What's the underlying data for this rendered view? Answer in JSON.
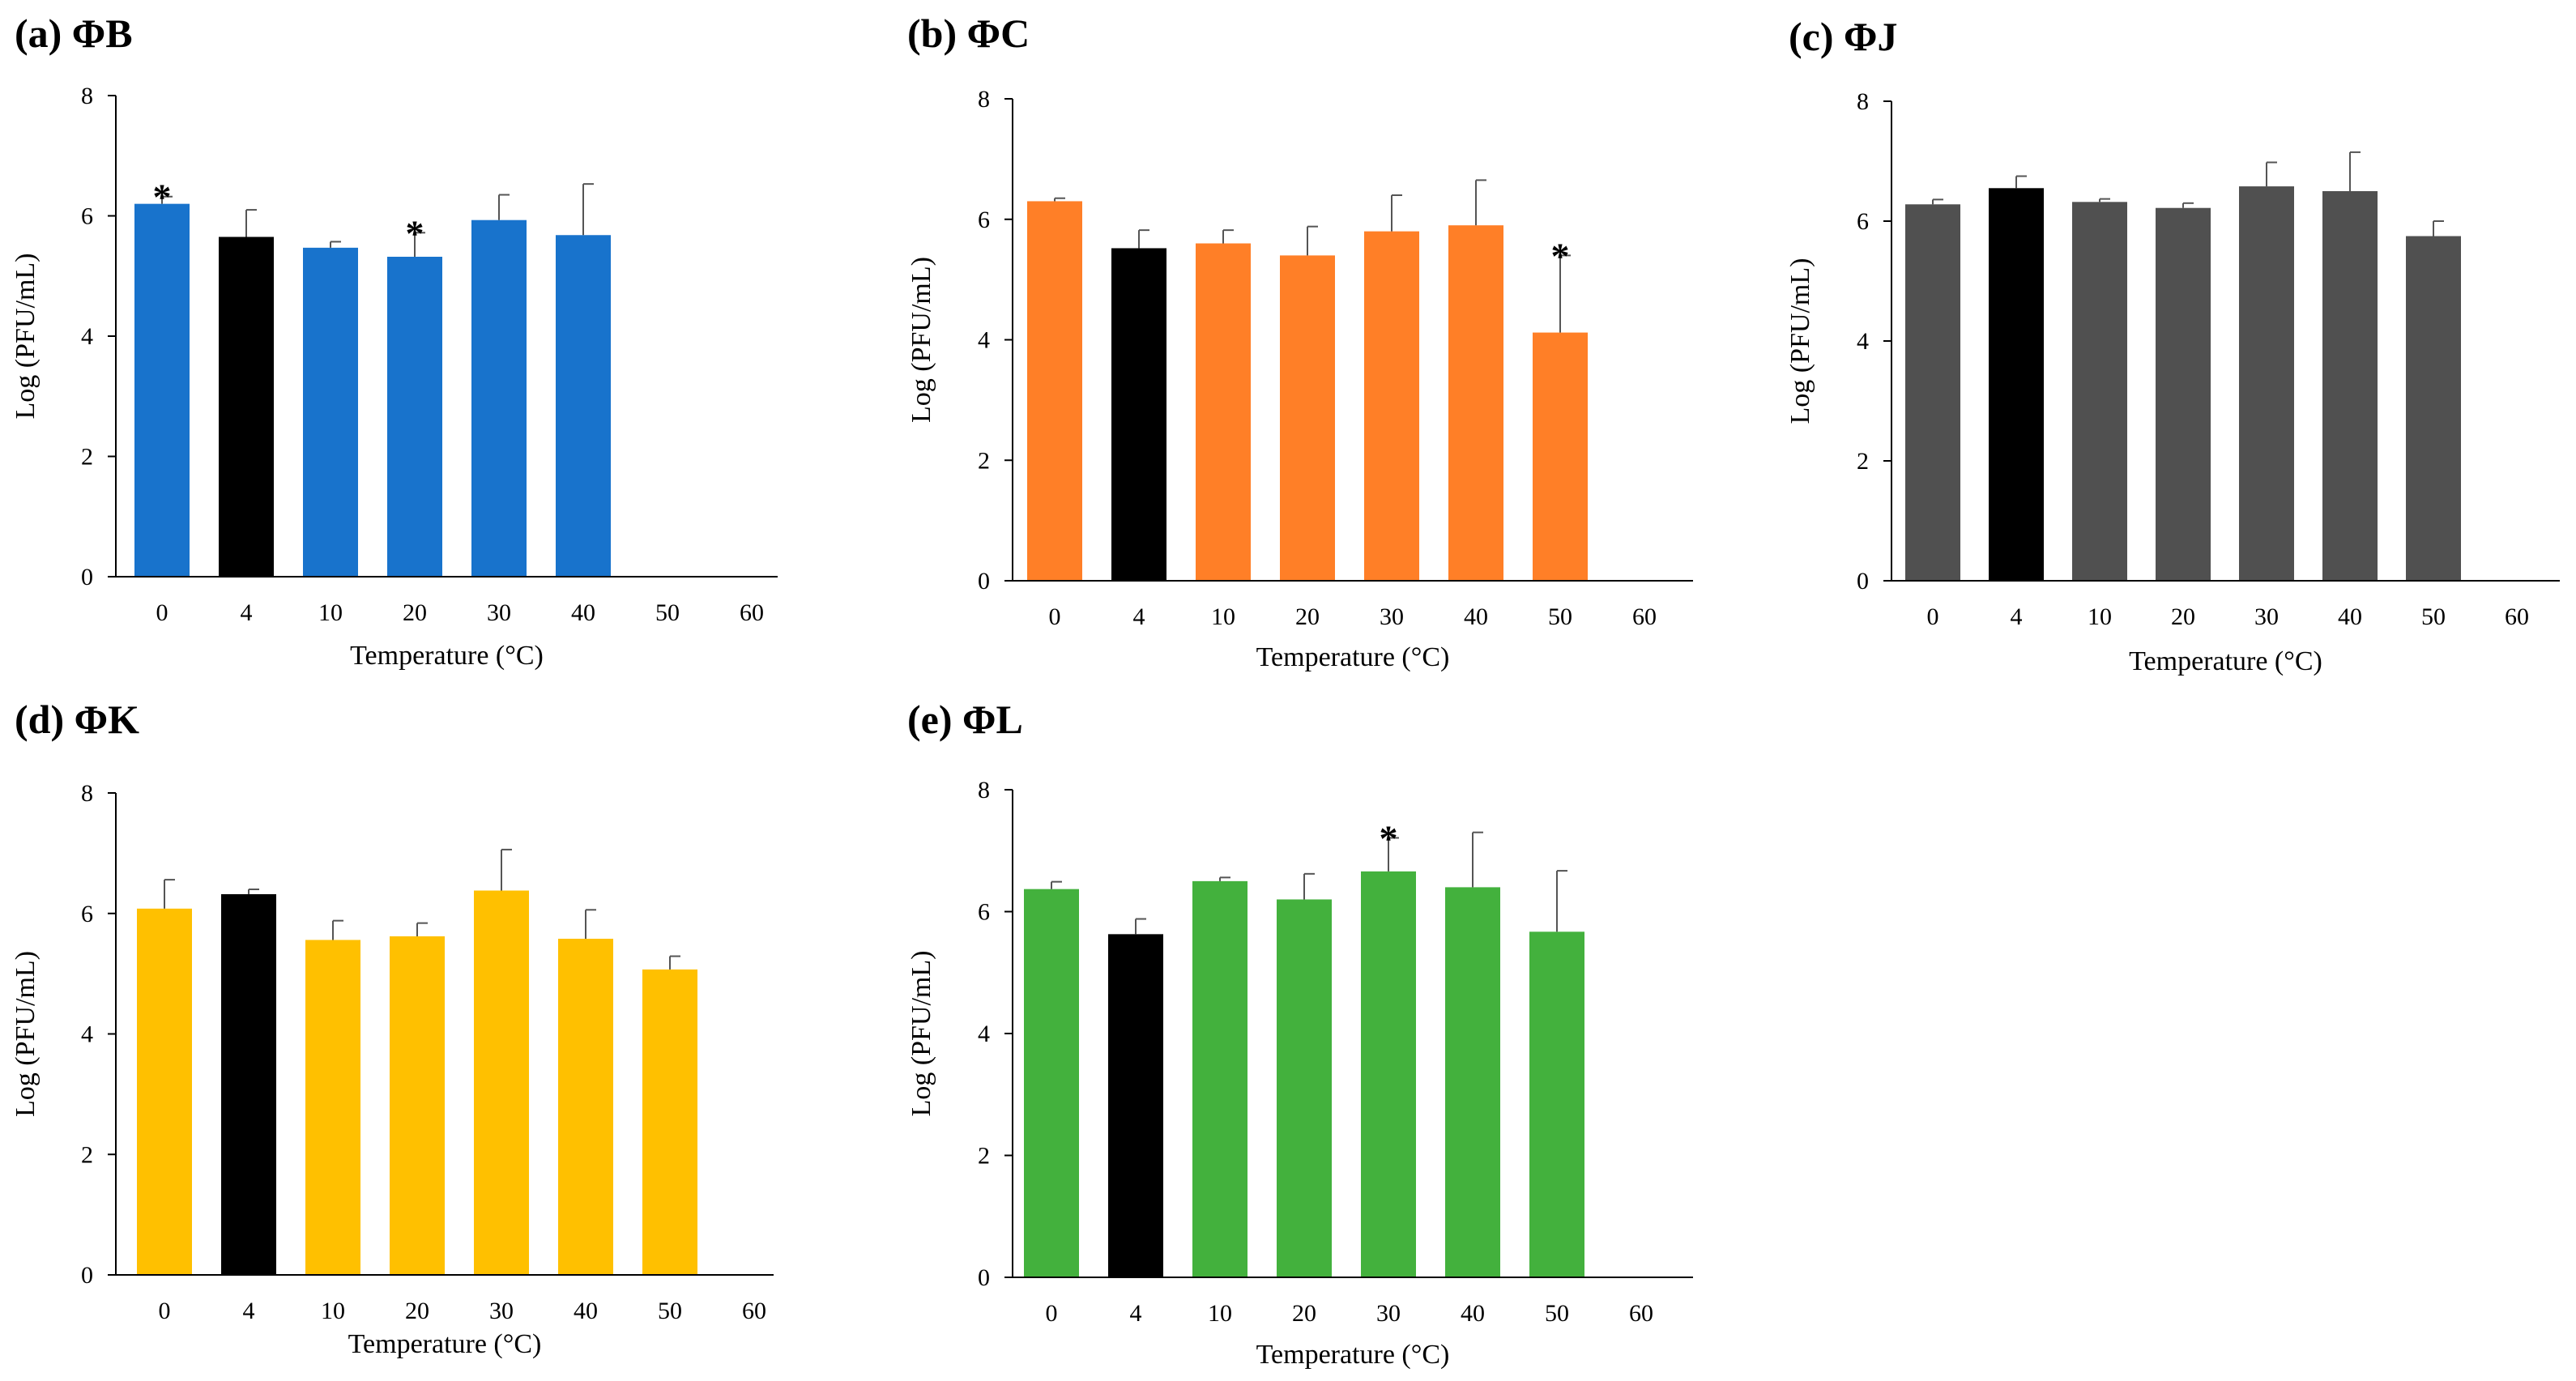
{
  "chart_data": [
    {
      "type": "bar",
      "panel_label": "(a) ΦB",
      "xlabel": "Temperature (°C)",
      "ylabel": "Log (PFU/mL)",
      "ylim": [
        0,
        8
      ],
      "yticks": [
        "0",
        "2",
        "4",
        "6",
        "8"
      ],
      "categories": [
        "0",
        "4",
        "10",
        "20",
        "30",
        "40",
        "50",
        "60"
      ],
      "values": [
        6.2,
        5.65,
        5.47,
        5.32,
        5.93,
        5.68,
        0,
        0
      ],
      "errors": [
        0.12,
        0.45,
        0.1,
        0.4,
        0.42,
        0.85,
        0,
        0
      ],
      "significant": [
        true,
        false,
        false,
        true,
        false,
        false,
        false,
        false
      ],
      "star_label": "*",
      "color": "#1873CC",
      "highlight_color": "#000000",
      "highlight_index": 1
    },
    {
      "type": "bar",
      "panel_label": "(b) ΦC",
      "xlabel": "Temperature (°C)",
      "ylabel": "Log (PFU/mL)",
      "ylim": [
        0,
        8
      ],
      "yticks": [
        "0",
        "2",
        "4",
        "6",
        "8"
      ],
      "categories": [
        "0",
        "4",
        "10",
        "20",
        "30",
        "40",
        "50",
        "60"
      ],
      "values": [
        6.3,
        5.52,
        5.6,
        5.4,
        5.8,
        5.9,
        4.12,
        0
      ],
      "errors": [
        0.05,
        0.3,
        0.22,
        0.48,
        0.6,
        0.75,
        1.28,
        0
      ],
      "significant": [
        false,
        false,
        false,
        false,
        false,
        false,
        true,
        false
      ],
      "star_label": "*",
      "color": "#FF7F27",
      "highlight_color": "#000000",
      "highlight_index": 1
    },
    {
      "type": "bar",
      "panel_label": "(c) ΦJ",
      "xlabel": "Temperature (°C)",
      "ylabel": "Log (PFU/mL)",
      "ylim": [
        0,
        8
      ],
      "yticks": [
        "0",
        "2",
        "4",
        "6",
        "8"
      ],
      "categories": [
        "0",
        "4",
        "10",
        "20",
        "30",
        "40",
        "50",
        "60"
      ],
      "values": [
        6.28,
        6.55,
        6.32,
        6.22,
        6.58,
        6.5,
        5.75,
        0
      ],
      "errors": [
        0.08,
        0.2,
        0.05,
        0.08,
        0.4,
        0.65,
        0.25,
        0
      ],
      "significant": [
        false,
        false,
        false,
        false,
        false,
        false,
        false,
        false
      ],
      "star_label": "*",
      "color": "#505050",
      "highlight_color": "#000000",
      "highlight_index": 1
    },
    {
      "type": "bar",
      "panel_label": "(d) ΦK",
      "xlabel": "Temperature (°C)",
      "ylabel": "Log (PFU/mL)",
      "ylim": [
        0,
        8
      ],
      "yticks": [
        "0",
        "2",
        "4",
        "6",
        "8"
      ],
      "categories": [
        "0",
        "4",
        "10",
        "20",
        "30",
        "40",
        "50",
        "60"
      ],
      "values": [
        6.08,
        6.32,
        5.56,
        5.62,
        6.38,
        5.58,
        5.07,
        0
      ],
      "errors": [
        0.48,
        0.08,
        0.32,
        0.22,
        0.68,
        0.48,
        0.22,
        0
      ],
      "significant": [
        false,
        false,
        false,
        false,
        false,
        false,
        false,
        false
      ],
      "star_label": "*",
      "color": "#FFC000",
      "highlight_color": "#000000",
      "highlight_index": 1
    },
    {
      "type": "bar",
      "panel_label": "(e) ΦL",
      "xlabel": "Temperature (°C)",
      "ylabel": "Log (PFU/mL)",
      "ylim": [
        0,
        8
      ],
      "yticks": [
        "0",
        "2",
        "4",
        "6",
        "8"
      ],
      "categories": [
        "0",
        "4",
        "10",
        "20",
        "30",
        "40",
        "50",
        "60"
      ],
      "values": [
        6.37,
        5.63,
        6.5,
        6.2,
        6.66,
        6.4,
        5.67,
        0
      ],
      "errors": [
        0.12,
        0.25,
        0.06,
        0.42,
        0.55,
        0.9,
        1.0,
        0
      ],
      "significant": [
        false,
        false,
        false,
        false,
        true,
        false,
        false,
        false
      ],
      "star_label": "*",
      "color": "#43B13D",
      "highlight_color": "#000000",
      "highlight_index": 1
    }
  ]
}
